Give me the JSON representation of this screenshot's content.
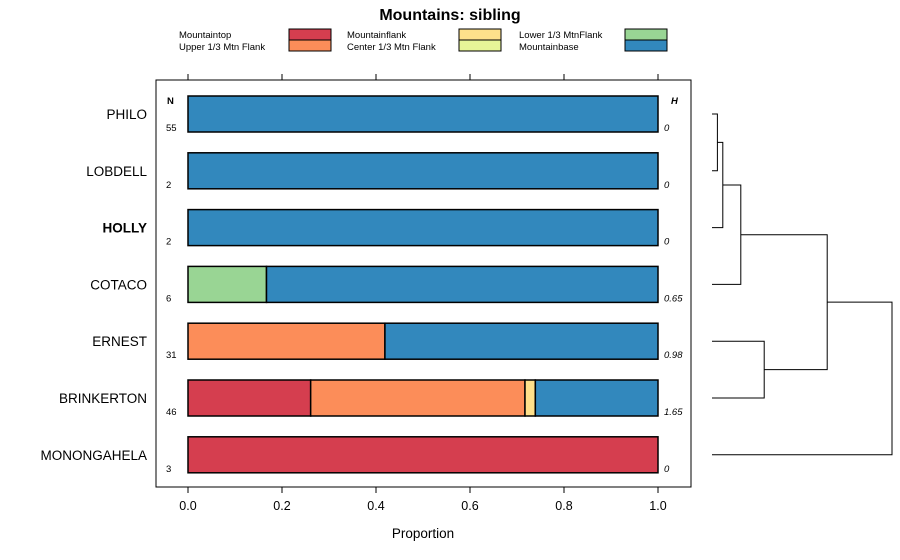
{
  "chart_data": {
    "type": "stacked-bar",
    "title": "Mountains: sibling",
    "xlabel": "Proportion",
    "xlim": [
      0,
      1
    ],
    "xticks": [
      "0.0",
      "0.2",
      "0.4",
      "0.6",
      "0.8",
      "1.0"
    ],
    "xtick_values": [
      0,
      0.2,
      0.4,
      0.6,
      0.8,
      1.0
    ],
    "n_header": "N",
    "h_header": "H",
    "legend": [
      {
        "name": "Mountaintop",
        "color": "#d53e4f"
      },
      {
        "name": "Upper 1/3 Mtn Flank",
        "color": "#fc8d59"
      },
      {
        "name": "Mountainflank",
        "color": "#fee08b"
      },
      {
        "name": "Center 1/3 Mtn Flank",
        "color": "#e6f598"
      },
      {
        "name": "Lower 1/3 MtnFlank",
        "color": "#99d594"
      },
      {
        "name": "Mountainbase",
        "color": "#3288bd"
      }
    ],
    "rows": [
      {
        "label": "PHILO",
        "bold": false,
        "n": "55",
        "h": "0",
        "segments": [
          {
            "category": "Mountainbase",
            "value": 1.0
          }
        ]
      },
      {
        "label": "LOBDELL",
        "bold": false,
        "n": "2",
        "h": "0",
        "segments": [
          {
            "category": "Mountainbase",
            "value": 1.0
          }
        ]
      },
      {
        "label": "HOLLY",
        "bold": true,
        "n": "2",
        "h": "0",
        "segments": [
          {
            "category": "Mountainbase",
            "value": 1.0
          }
        ]
      },
      {
        "label": "COTACO",
        "bold": false,
        "n": "6",
        "h": "0.65",
        "segments": [
          {
            "category": "Lower 1/3 MtnFlank",
            "value": 0.167
          },
          {
            "category": "Mountainbase",
            "value": 0.833
          }
        ]
      },
      {
        "label": "ERNEST",
        "bold": false,
        "n": "31",
        "h": "0.98",
        "segments": [
          {
            "category": "Upper 1/3 Mtn Flank",
            "value": 0.419
          },
          {
            "category": "Mountainbase",
            "value": 0.581
          }
        ]
      },
      {
        "label": "BRINKERTON",
        "bold": false,
        "n": "46",
        "h": "1.65",
        "segments": [
          {
            "category": "Mountaintop",
            "value": 0.261
          },
          {
            "category": "Upper 1/3 Mtn Flank",
            "value": 0.456
          },
          {
            "category": "Mountainflank",
            "value": 0.022
          },
          {
            "category": "Mountainbase",
            "value": 0.261
          }
        ]
      },
      {
        "label": "MONONGAHELA",
        "bold": false,
        "n": "3",
        "h": "0",
        "segments": [
          {
            "category": "Mountaintop",
            "value": 1.0
          }
        ]
      }
    ],
    "dendrogram": {
      "leaves": [
        "PHILO",
        "LOBDELL",
        "HOLLY",
        "COTACO",
        "ERNEST",
        "BRINKERTON",
        "MONONGAHELA"
      ],
      "merges": [
        {
          "left": "PHILO",
          "right": "LOBDELL",
          "height": 0.03
        },
        {
          "left": "m0",
          "right": "HOLLY",
          "height": 0.06
        },
        {
          "left": "m1",
          "right": "COTACO",
          "height": 0.16
        },
        {
          "left": "ERNEST",
          "right": "BRINKERTON",
          "height": 0.29
        },
        {
          "left": "m2",
          "right": "m3",
          "height": 0.64
        },
        {
          "left": "m4",
          "right": "MONONGAHELA",
          "height": 1.0
        }
      ]
    }
  }
}
